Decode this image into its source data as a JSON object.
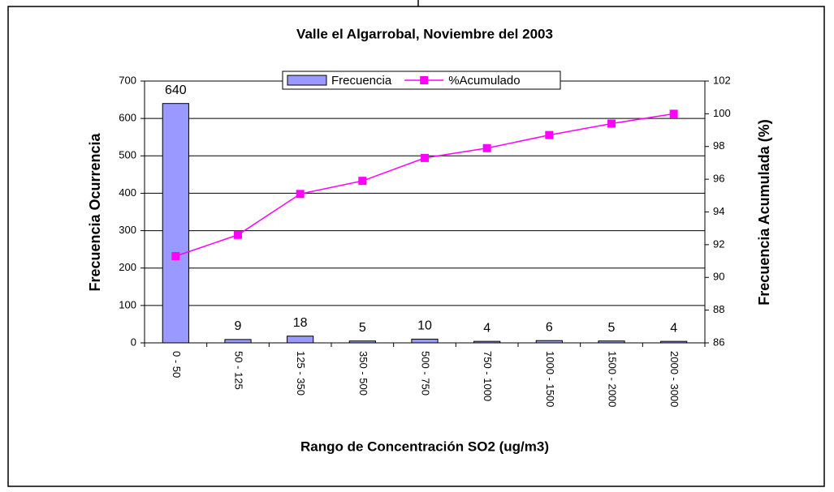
{
  "chart_data": {
    "type": "bar_line",
    "title": "Valle el Algarrobal, Noviembre del 2003",
    "x_label": "Rango de Concentración SO2 (ug/m3)",
    "y_label": "Frecuencia Ocurrencia",
    "y2_label": "Frecuencia Acumulada (%)",
    "categories": [
      "0 - 50",
      "50 - 125",
      "125 - 350",
      "350 - 500",
      "500 - 750",
      "750 - 1000",
      "1000 - 1500",
      "1500 - 2000",
      "2000 - 3000"
    ],
    "series": [
      {
        "name": "Frecuencia",
        "type": "bar",
        "color": "#9999ff",
        "values": [
          640,
          9,
          18,
          5,
          10,
          4,
          6,
          5,
          4
        ]
      },
      {
        "name": "%Acumulado",
        "type": "line",
        "axis": "y2",
        "color": "#ff00ff",
        "values": [
          91.3,
          92.6,
          95.1,
          95.9,
          97.3,
          97.9,
          98.7,
          99.4,
          100
        ]
      }
    ],
    "ylim": [
      0,
      700
    ],
    "yticks": [
      0,
      100,
      200,
      300,
      400,
      500,
      600,
      700
    ],
    "y2lim": [
      86,
      102
    ],
    "y2ticks": [
      86,
      88,
      90,
      92,
      94,
      96,
      98,
      100,
      102
    ],
    "grid": true,
    "legend": "top"
  }
}
